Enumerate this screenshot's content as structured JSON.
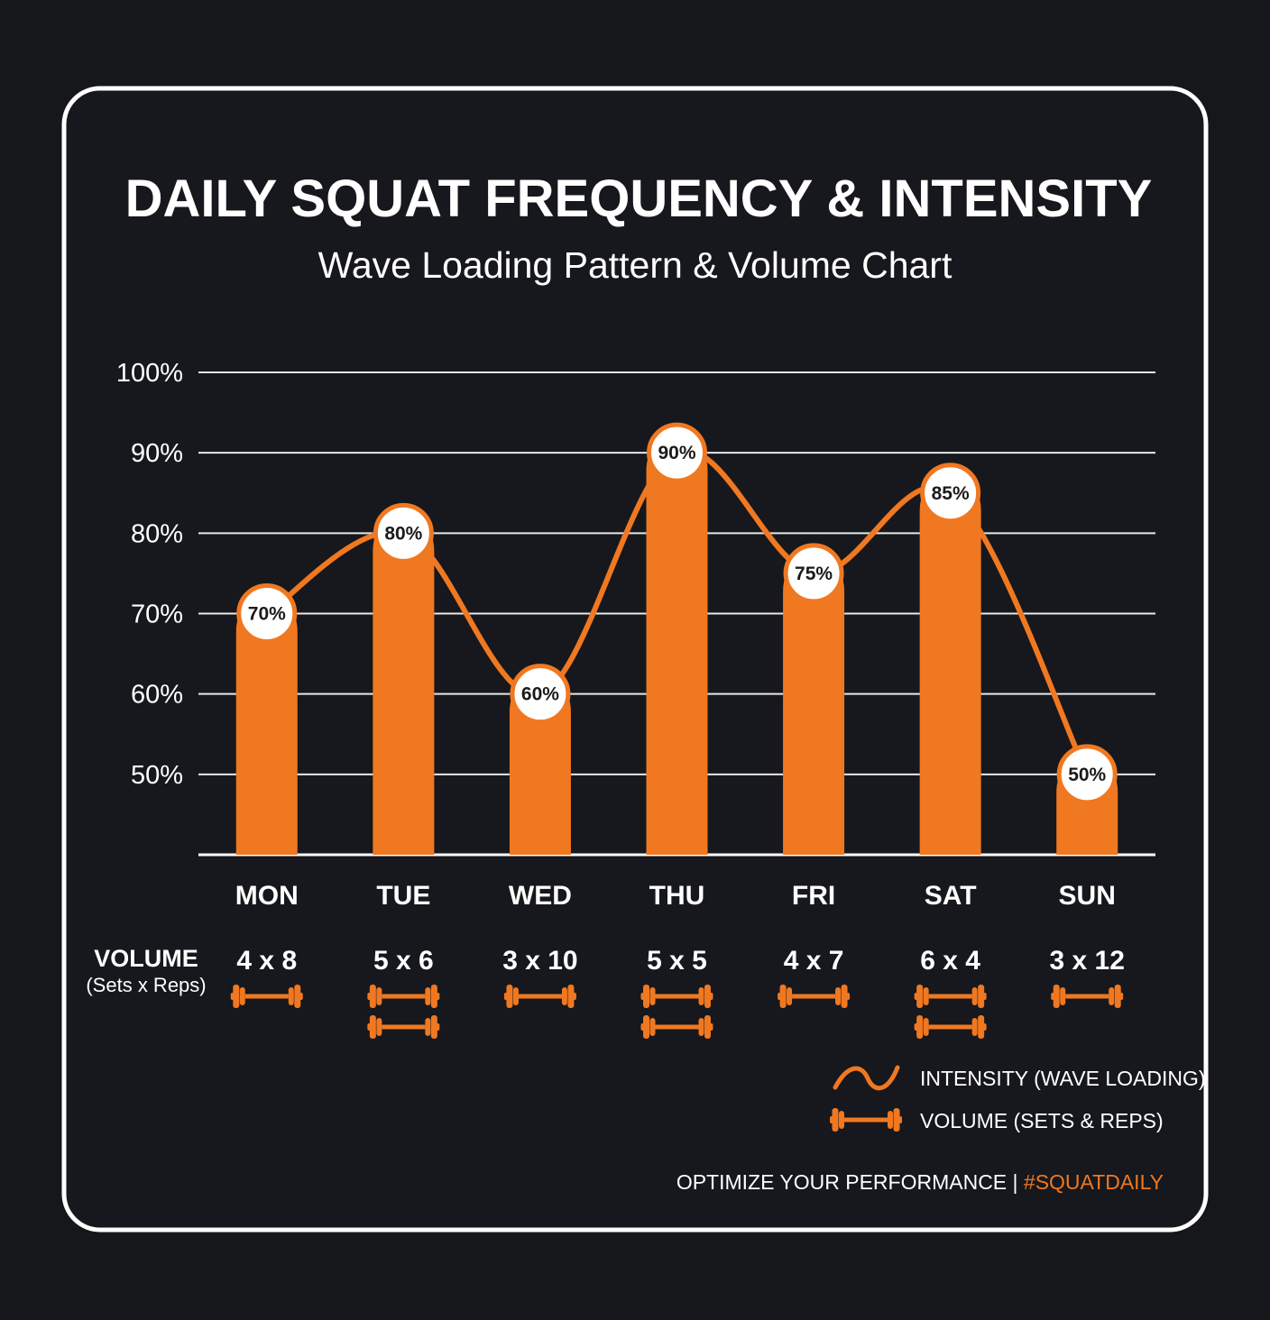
{
  "chart_data": {
    "type": "bar",
    "title": "DAILY SQUAT FREQUENCY & INTENSITY",
    "subtitle": "Wave Loading Pattern & Volume Chart",
    "categories": [
      "MON",
      "TUE",
      "WED",
      "THU",
      "FRI",
      "SAT",
      "SUN"
    ],
    "y_ticks": [
      "100%",
      "90%",
      "80%",
      "70%",
      "60%",
      "50%"
    ],
    "ylim": [
      40,
      100
    ],
    "grid": true,
    "series": [
      {
        "name": "INTENSITY (WAVE LOADING)",
        "values": [
          70,
          80,
          60,
          90,
          75,
          85,
          50
        ],
        "labels": [
          "70%",
          "80%",
          "60%",
          "90%",
          "75%",
          "85%",
          "50%"
        ]
      }
    ],
    "volume": {
      "label": "VOLUME",
      "sublabel": "(Sets x Reps)",
      "values": [
        "4 x 8",
        "5 x 6",
        "3 x 10",
        "5 x 5",
        "4 x 7",
        "6 x 4",
        "3 x 12"
      ],
      "icon": "dumbbell-icon",
      "icon_counts": [
        1,
        2,
        1,
        2,
        1,
        2,
        1
      ]
    },
    "legend": {
      "placement": "bottom-right",
      "items": [
        {
          "icon": "wave-icon",
          "label": "INTENSITY (WAVE LOADING)"
        },
        {
          "icon": "dumbbell-icon",
          "label": "VOLUME (SETS & REPS)"
        }
      ]
    },
    "footer": {
      "text": "OPTIMIZE YOUR PERFORMANCE | ",
      "hashtag": "#SQUATDAILY"
    },
    "colors": {
      "accent": "#f07820",
      "background": "#15171b",
      "text": "#ffffff"
    }
  }
}
